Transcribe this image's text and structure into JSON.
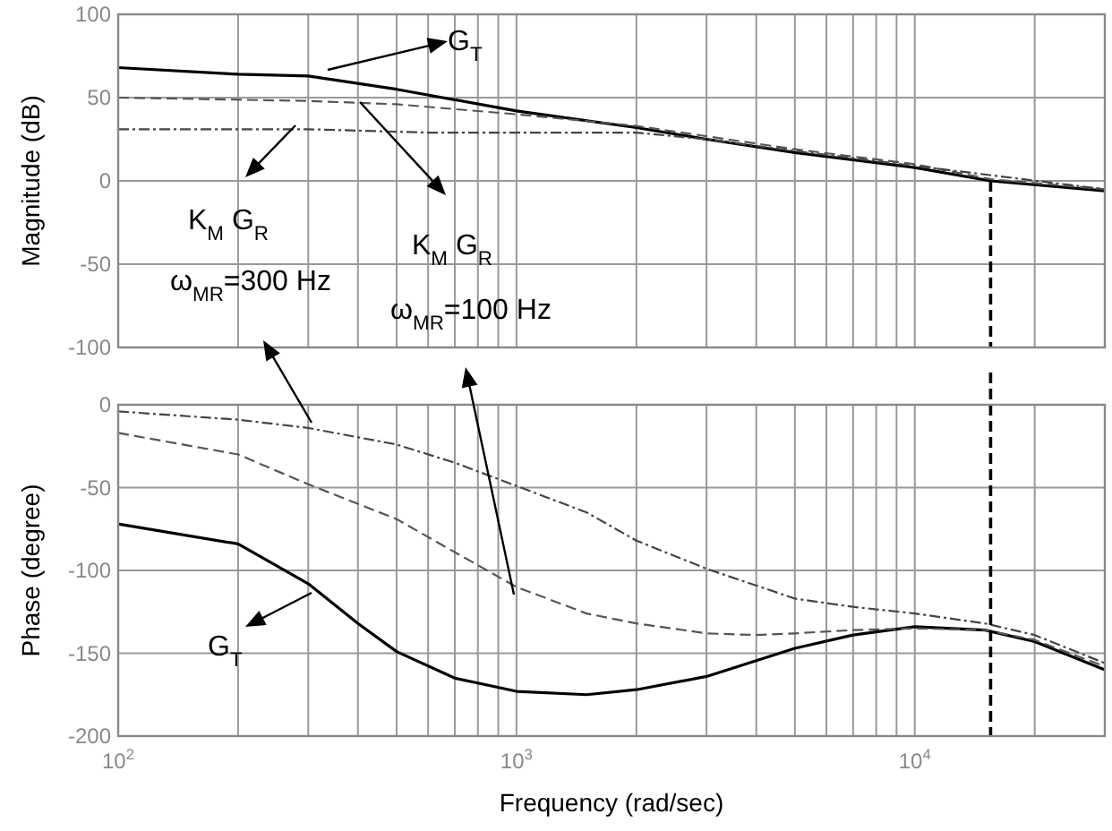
{
  "chart_data": [
    {
      "type": "line",
      "ylabel": "Magnitude (dB)",
      "xlim": [
        100,
        30000
      ],
      "ylim": [
        -100,
        100
      ],
      "log": "x",
      "grid": true,
      "tick_labels": "y",
      "xticks": [
        {
          "value": 100,
          "label": null
        },
        {
          "value": 200,
          "label": null
        },
        {
          "value": 300,
          "label": null
        },
        {
          "value": 400,
          "label": null
        },
        {
          "value": 500,
          "label": null
        },
        {
          "value": 600,
          "label": null
        },
        {
          "value": 700,
          "label": null
        },
        {
          "value": 800,
          "label": null
        },
        {
          "value": 900,
          "label": null
        },
        {
          "value": 1000,
          "label": null
        },
        {
          "value": 2000,
          "label": null
        },
        {
          "value": 3000,
          "label": null
        },
        {
          "value": 4000,
          "label": null
        },
        {
          "value": 5000,
          "label": null
        },
        {
          "value": 6000,
          "label": null
        },
        {
          "value": 7000,
          "label": null
        },
        {
          "value": 8000,
          "label": null
        },
        {
          "value": 9000,
          "label": null
        },
        {
          "value": 10000,
          "label": null
        },
        {
          "value": 20000,
          "label": null
        }
      ],
      "yticks": [
        -100,
        -50,
        0,
        50,
        100
      ],
      "series": [
        {
          "color": "#000000",
          "line_style": "solid",
          "x": [
            100,
            200,
            300,
            500,
            1000,
            2000,
            3000,
            5000,
            10000,
            15500,
            30000
          ],
          "values": [
            68,
            64,
            63,
            55,
            42,
            32,
            25,
            17,
            8,
            0,
            -6
          ]
        },
        {
          "color": "#555555",
          "line_style": "dashed",
          "x": [
            100,
            300,
            500,
            1000,
            2000,
            5000,
            10000,
            15500,
            30000
          ],
          "values": [
            50,
            48,
            46,
            40,
            33,
            19,
            10,
            1,
            -5
          ]
        },
        {
          "color": "#444444",
          "line_style": "dashdot",
          "x": [
            100,
            300,
            600,
            1000,
            2000,
            3000,
            5000,
            10000,
            30000
          ],
          "values": [
            31,
            31,
            29,
            29,
            29,
            25,
            18,
            9,
            -5
          ]
        }
      ],
      "ref_lines": [
        {
          "axis": "x",
          "value": 15500,
          "color": "#000000",
          "line_style": "dashed"
        }
      ],
      "annotations": [
        "G$_{T}$",
        "K$_{M}$ G$_{R}$",
        "K$_{M}$ G$_{R}$",
        "ω$_{MR}$=300 Hz",
        "ω$_{MR}$=100 Hz"
      ]
    },
    {
      "type": "line",
      "xlabel": "Frequency (rad/sec)",
      "ylabel": "Phase (degree)",
      "xlim": [
        100,
        30000
      ],
      "ylim": [
        -200,
        0
      ],
      "log": "x",
      "grid": true,
      "xticks": [
        {
          "value": 100,
          "label": "10$^{2}$"
        },
        {
          "value": 200,
          "label": null
        },
        {
          "value": 300,
          "label": null
        },
        {
          "value": 400,
          "label": null
        },
        {
          "value": 500,
          "label": null
        },
        {
          "value": 600,
          "label": null
        },
        {
          "value": 700,
          "label": null
        },
        {
          "value": 800,
          "label": null
        },
        {
          "value": 900,
          "label": null
        },
        {
          "value": 1000,
          "label": "10$^{3}$"
        },
        {
          "value": 2000,
          "label": null
        },
        {
          "value": 3000,
          "label": null
        },
        {
          "value": 4000,
          "label": null
        },
        {
          "value": 5000,
          "label": null
        },
        {
          "value": 6000,
          "label": null
        },
        {
          "value": 7000,
          "label": null
        },
        {
          "value": 8000,
          "label": null
        },
        {
          "value": 9000,
          "label": null
        },
        {
          "value": 10000,
          "label": "10$^{4}$"
        },
        {
          "value": 20000,
          "label": null
        }
      ],
      "yticks": [
        -200,
        -150,
        -100,
        -50,
        0
      ],
      "series": [
        {
          "color": "#000000",
          "line_style": "solid",
          "x": [
            100,
            200,
            300,
            400,
            500,
            700,
            1000,
            1500,
            2000,
            3000,
            5000,
            7000,
            10000,
            15000,
            20000,
            30000
          ],
          "values": [
            -72,
            -84,
            -108,
            -132,
            -149,
            -165,
            -173,
            -175,
            -172,
            -164,
            -147,
            -139,
            -134,
            -136,
            -143,
            -160
          ]
        },
        {
          "color": "#555555",
          "line_style": "dashed",
          "x": [
            100,
            200,
            300,
            500,
            700,
            1000,
            1500,
            2000,
            3000,
            4000,
            5000,
            7000,
            10000,
            15000,
            20000,
            30000
          ],
          "values": [
            -17,
            -30,
            -48,
            -69,
            -89,
            -110,
            -126,
            -132,
            -138,
            -139,
            -138,
            -136,
            -135,
            -136,
            -142,
            -158
          ]
        },
        {
          "color": "#444444",
          "line_style": "dashdot",
          "x": [
            100,
            200,
            300,
            500,
            700,
            1000,
            1500,
            2000,
            3000,
            5000,
            7000,
            10000,
            15000,
            20000,
            30000
          ],
          "values": [
            -4,
            -9,
            -14,
            -24,
            -35,
            -49,
            -65,
            -82,
            -99,
            -117,
            -122,
            -126,
            -132,
            -139,
            -156
          ]
        }
      ],
      "ref_lines": [
        {
          "axis": "x",
          "value": 15500,
          "color": "#000000",
          "line_style": "dashed"
        }
      ],
      "annotations": [
        "G$_{T}$"
      ]
    }
  ]
}
